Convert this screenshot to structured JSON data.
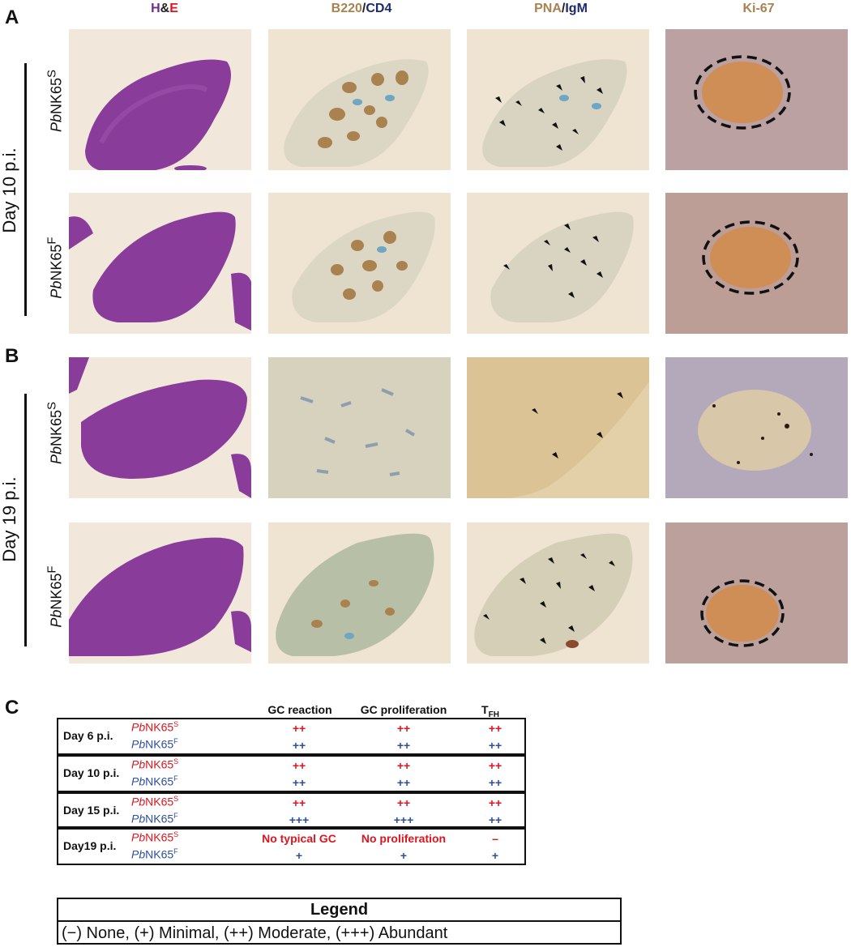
{
  "panels": {
    "a": "A",
    "b": "B",
    "c": "C"
  },
  "stains": {
    "he": {
      "h": "H",
      "amp": "&",
      "e": "E"
    },
    "b220": {
      "a": "B220",
      "slash": "/",
      "b": "CD4"
    },
    "pna": {
      "a": "PNA",
      "slash": "/",
      "b": "IgM"
    },
    "ki67": "Ki-67"
  },
  "day_labels": {
    "d10": "Day 10 p.i.",
    "d19": "Day 19 p.i."
  },
  "strain": {
    "prefix": "Pb",
    "name": "NK65",
    "sup_s": "S",
    "sup_f": "F"
  },
  "table": {
    "headers": {
      "gc_reaction": "GC reaction",
      "gc_prolif": "GC proliferation",
      "tfh": "T",
      "tfh_sub": "FH"
    },
    "rows": [
      {
        "day": "Day 6 p.i.",
        "s": [
          "++",
          "++",
          "++"
        ],
        "f": [
          "++",
          "++",
          "++"
        ]
      },
      {
        "day": "Day 10 p.i.",
        "s": [
          "++",
          "++",
          "++"
        ],
        "f": [
          "++",
          "++",
          "++"
        ]
      },
      {
        "day": "Day 15 p.i.",
        "s": [
          "++",
          "++",
          "++"
        ],
        "f": [
          "+++",
          "+++",
          "++"
        ]
      },
      {
        "day": "Day19 p.i.",
        "s": [
          "No typical GC",
          "No proliferation",
          "–"
        ],
        "f": [
          "+",
          "+",
          "+"
        ]
      }
    ]
  },
  "legend": {
    "title": "Legend",
    "text": "(−) None,  (+) Minimal,  (++) Moderate,  (+++) Abundant"
  },
  "colors": {
    "red": "#e0141e",
    "blue": "#2c4fa0",
    "purple": "#6b2c91",
    "tan": "#a98250",
    "navy": "#1d2a6b"
  }
}
